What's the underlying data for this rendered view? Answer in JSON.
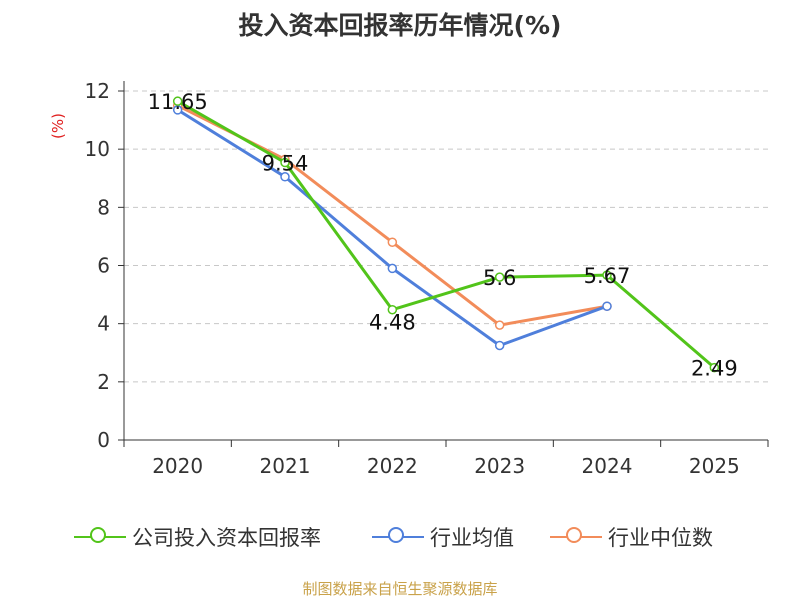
{
  "chart_data": {
    "type": "line",
    "title": "投入资本回报率历年情况(%)",
    "ylabel": "(%)",
    "xlabel": "",
    "categories": [
      "2020",
      "2021",
      "2022",
      "2023",
      "2024",
      "2025"
    ],
    "ylim": [
      0,
      12
    ],
    "yticks": [
      0,
      2,
      4,
      6,
      8,
      10,
      12
    ],
    "grid": true,
    "legend_position": "bottom",
    "series": [
      {
        "name": "公司投入资本回报率",
        "color": "#52c41a",
        "values": [
          11.65,
          9.54,
          4.48,
          5.6,
          5.67,
          2.49
        ],
        "labels": [
          "11.65",
          "9.54",
          "4.48",
          "5.6",
          "5.67",
          "2.49"
        ]
      },
      {
        "name": "行业均值",
        "color": "#4f7fdb",
        "values": [
          11.35,
          9.05,
          5.9,
          3.25,
          4.6,
          null
        ]
      },
      {
        "name": "行业中位数",
        "color": "#f28c5a",
        "values": [
          11.5,
          9.65,
          6.8,
          3.95,
          4.6,
          null
        ]
      }
    ]
  },
  "source": "制图数据来自恒生聚源数据库"
}
